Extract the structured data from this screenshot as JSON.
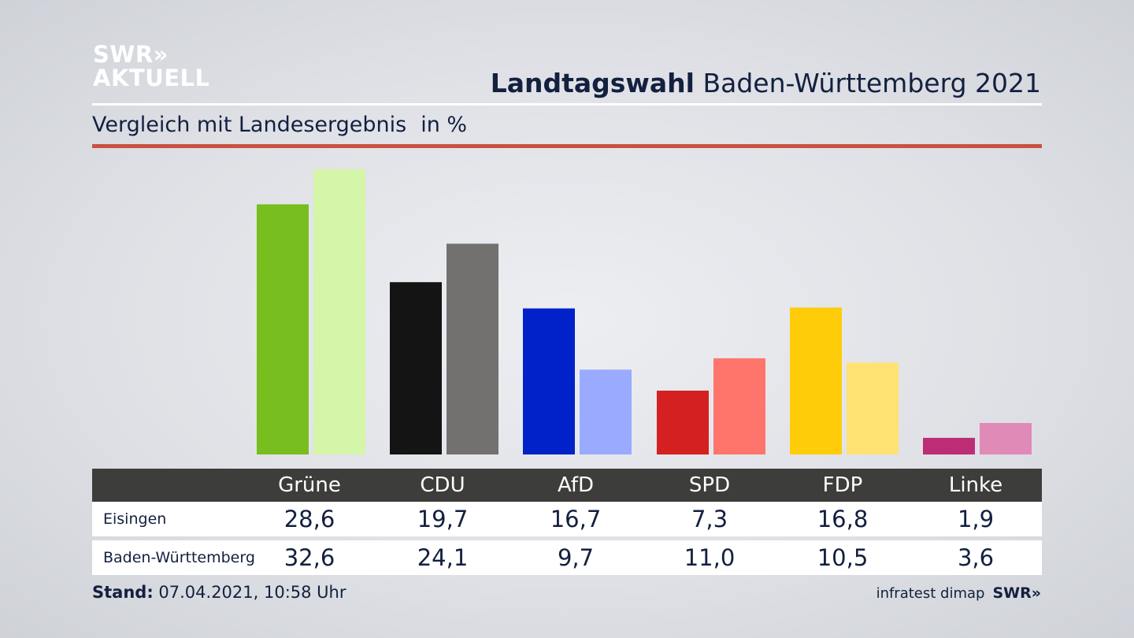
{
  "brand": {
    "line1": "SWR»",
    "line2": "AKTUELL"
  },
  "header": {
    "title_bold": "Landtagswahl",
    "title_rest": " Baden-Württemberg 2021"
  },
  "subtitle": {
    "text": "Vergleich mit Landesergebnis",
    "unit": "in %"
  },
  "chart_data": {
    "type": "bar",
    "title": "Landtagswahl Baden-Württemberg 2021",
    "subtitle": "Vergleich mit Landesergebnis in %",
    "categories": [
      "Grüne",
      "CDU",
      "AfD",
      "SPD",
      "FDP",
      "Linke"
    ],
    "series": [
      {
        "name": "Eisingen",
        "values": [
          28.6,
          19.7,
          16.7,
          7.3,
          16.8,
          1.9
        ]
      },
      {
        "name": "Baden-Württemberg",
        "values": [
          32.6,
          24.1,
          9.7,
          11.0,
          10.5,
          3.6
        ]
      }
    ],
    "colors": {
      "Eisingen": [
        "#78be1e",
        "#141414",
        "#0022c8",
        "#d42020",
        "#ffcc0a",
        "#bd2d75"
      ],
      "Baden-Württemberg": [
        "#d5f5a8",
        "#72716f",
        "#9aaaff",
        "#ff756c",
        "#ffe272",
        "#e08ab8"
      ]
    },
    "ylim": [
      0,
      32.6
    ],
    "grid": false,
    "legend": "none"
  },
  "table": {
    "headers": [
      "Grüne",
      "CDU",
      "AfD",
      "SPD",
      "FDP",
      "Linke"
    ],
    "rows": [
      {
        "label": "Eisingen",
        "values": [
          "28,6",
          "19,7",
          "16,7",
          "7,3",
          "16,8",
          "1,9"
        ]
      },
      {
        "label": "Baden-Württemberg",
        "values": [
          "32,6",
          "24,1",
          "9,7",
          "11,0",
          "10,5",
          "3,6"
        ]
      }
    ]
  },
  "footer": {
    "stand_label": "Stand:",
    "stand_value": " 07.04.2021, 10:58 Uhr",
    "source": "infratest dimap",
    "brand": "SWR»"
  }
}
